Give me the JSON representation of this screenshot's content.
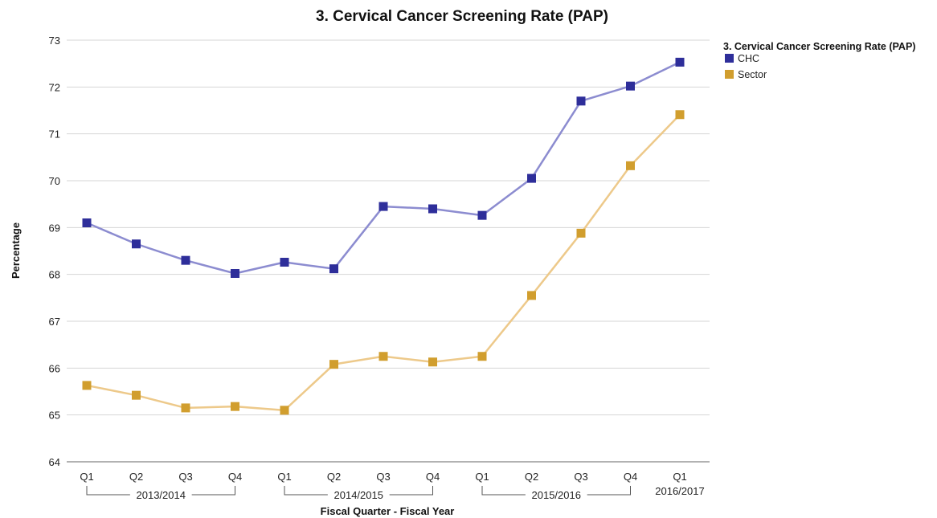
{
  "chart_data": {
    "type": "line",
    "title": "3. Cervical Cancer Screening Rate (PAP)",
    "xlabel": "Fiscal Quarter - Fiscal Year",
    "ylabel": "Percentage",
    "ylim": [
      64,
      73
    ],
    "yticks": [
      "64",
      "65",
      "66",
      "67",
      "68",
      "69",
      "70",
      "71",
      "72",
      "73"
    ],
    "grid": true,
    "legend_position": "top-right",
    "legend_title": "3. Cervical Cancer Screening Rate (PAP)",
    "categories": [
      "Q1",
      "Q2",
      "Q3",
      "Q4",
      "Q1",
      "Q2",
      "Q3",
      "Q4",
      "Q1",
      "Q2",
      "Q3",
      "Q4",
      "Q1"
    ],
    "groups": [
      {
        "label": "2013/2014",
        "start": 0,
        "end": 3
      },
      {
        "label": "2014/2015",
        "start": 4,
        "end": 7
      },
      {
        "label": "2015/2016",
        "start": 8,
        "end": 11
      },
      {
        "label": "2016/2017",
        "start": 12,
        "end": 12
      }
    ],
    "series": [
      {
        "name": "CHC",
        "color": "#2e2e9a",
        "line_color": "#8c8cd0",
        "values": [
          69.1,
          68.65,
          68.3,
          68.02,
          68.26,
          68.12,
          69.45,
          69.4,
          69.26,
          70.05,
          71.7,
          72.02,
          72.53
        ]
      },
      {
        "name": "Sector",
        "color": "#d19e2e",
        "line_color": "#edc98a",
        "values": [
          65.63,
          65.42,
          65.15,
          65.18,
          65.1,
          66.08,
          66.25,
          66.13,
          66.25,
          67.55,
          68.88,
          70.32,
          71.41
        ]
      }
    ]
  }
}
